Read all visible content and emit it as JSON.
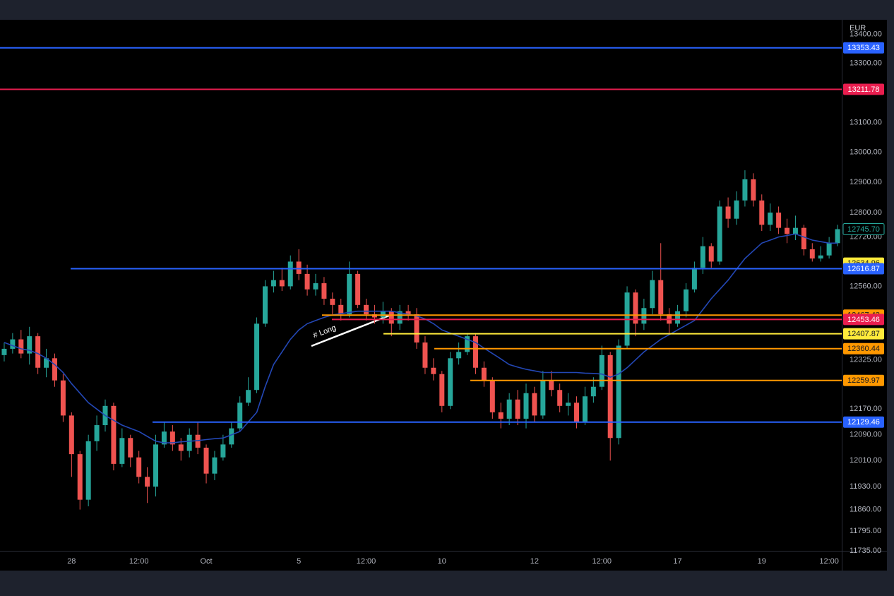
{
  "chart_data": {
    "type": "candlestick",
    "currency": "EUR",
    "annotation": "# Long",
    "log_scale": true,
    "ylim": [
      11735,
      13450
    ],
    "yticks": [
      {
        "value": 13400,
        "label": "13400.00"
      },
      {
        "value": 13300,
        "label": "13300.00"
      },
      {
        "value": 13100,
        "label": "13100.00"
      },
      {
        "value": 13000,
        "label": "13000.00"
      },
      {
        "value": 12900,
        "label": "12900.00"
      },
      {
        "value": 12800,
        "label": "12800.00"
      },
      {
        "value": 12720,
        "label": "12720.00"
      },
      {
        "value": 12560,
        "label": "12560.00"
      },
      {
        "value": 12325,
        "label": "12325.00"
      },
      {
        "value": 12170,
        "label": "12170.00"
      },
      {
        "value": 12090,
        "label": "12090.00"
      },
      {
        "value": 12010,
        "label": "12010.00"
      },
      {
        "value": 11930,
        "label": "11930.00"
      },
      {
        "value": 11860,
        "label": "11860.00"
      },
      {
        "value": 11795,
        "label": "11795.00"
      },
      {
        "value": 11735,
        "label": "11735.00"
      }
    ],
    "categories": [
      null,
      null,
      null,
      null,
      null,
      null,
      null,
      null,
      "28",
      null,
      null,
      null,
      null,
      null,
      null,
      null,
      "12:00",
      null,
      null,
      null,
      null,
      null,
      null,
      null,
      "Oct",
      null,
      null,
      null,
      null,
      null,
      null,
      null,
      null,
      null,
      null,
      "5",
      null,
      null,
      null,
      null,
      null,
      null,
      null,
      "12:00",
      null,
      null,
      null,
      null,
      null,
      null,
      null,
      null,
      "10",
      null,
      null,
      null,
      null,
      null,
      null,
      null,
      null,
      null,
      null,
      "12",
      null,
      null,
      null,
      null,
      null,
      null,
      null,
      "12:00",
      null,
      null,
      null,
      null,
      null,
      null,
      null,
      null,
      "17",
      null,
      null,
      null,
      null,
      null,
      null,
      null,
      null,
      null,
      "19",
      null,
      null,
      null,
      null,
      null,
      null,
      null,
      "12:00",
      null
    ],
    "up_color": "#26a69a",
    "down_color": "#ef5350",
    "open": [
      12340,
      12360,
      12390,
      12345,
      12400,
      12300,
      12330,
      12260,
      12150,
      12030,
      11890,
      12070,
      12120,
      12180,
      12000,
      12080,
      12020,
      11960,
      11930,
      12060,
      12100,
      12060,
      12040,
      12090,
      12050,
      11970,
      12020,
      12060,
      12110,
      12190,
      12230,
      12440,
      12560,
      12580,
      12560,
      12640,
      12600,
      12550,
      12570,
      12520,
      12500,
      12470,
      12600,
      12500,
      12470,
      12460,
      12480,
      12440,
      12480,
      12470,
      12380,
      12300,
      12280,
      12180,
      12330,
      12350,
      12400,
      12300,
      12260,
      12160,
      12140,
      12200,
      12140,
      12220,
      12150,
      12260,
      12230,
      12180,
      12190,
      12130,
      12210,
      12240,
      12340,
      12080,
      12370,
      12540,
      12440,
      12490,
      12580,
      12470,
      12440,
      12480,
      12550,
      12620,
      12690,
      12640,
      12820,
      12780,
      12840,
      12910,
      12840,
      12760,
      12800,
      12750,
      12730,
      12750,
      12680,
      12650,
      12660,
      12700
    ],
    "high": [
      12380,
      12410,
      12420,
      12430,
      12410,
      12360,
      12345,
      12280,
      12160,
      12040,
      12090,
      12150,
      12200,
      12190,
      12110,
      12090,
      12040,
      11990,
      12090,
      12130,
      12120,
      12080,
      12110,
      12130,
      12060,
      12040,
      12090,
      12130,
      12210,
      12270,
      12460,
      12580,
      12610,
      12620,
      12660,
      12680,
      12630,
      12600,
      12590,
      12540,
      12520,
      12640,
      12610,
      12520,
      12500,
      12510,
      12490,
      12500,
      12500,
      12490,
      12400,
      12330,
      12290,
      12350,
      12380,
      12410,
      12410,
      12320,
      12270,
      12190,
      12220,
      12230,
      12250,
      12240,
      12290,
      12290,
      12250,
      12220,
      12210,
      12240,
      12270,
      12370,
      12350,
      12390,
      12560,
      12550,
      12520,
      12610,
      12700,
      12490,
      12500,
      12570,
      12640,
      12720,
      12700,
      12840,
      12850,
      12870,
      12940,
      12930,
      12860,
      12830,
      12820,
      12780,
      12790,
      12760,
      12700,
      12690,
      12720,
      12760
    ],
    "low": [
      12320,
      12345,
      12330,
      12310,
      12280,
      12270,
      12240,
      12130,
      11960,
      11860,
      11870,
      12040,
      12100,
      11980,
      11990,
      11990,
      11940,
      11880,
      11900,
      12050,
      12040,
      12010,
      12020,
      12030,
      11940,
      11950,
      12010,
      12050,
      12100,
      12180,
      12220,
      12430,
      12540,
      12545,
      12550,
      12580,
      12530,
      12530,
      12500,
      12470,
      12450,
      12460,
      12490,
      12450,
      12440,
      12440,
      12400,
      12420,
      12450,
      12360,
      12280,
      12260,
      12160,
      12170,
      12310,
      12340,
      12280,
      12240,
      12140,
      12110,
      12120,
      12120,
      12110,
      12130,
      12140,
      12210,
      12160,
      12150,
      12110,
      12120,
      12190,
      12230,
      12010,
      12060,
      12360,
      12400,
      12420,
      12470,
      12450,
      12410,
      12430,
      12460,
      12540,
      12600,
      12620,
      12630,
      12750,
      12760,
      12820,
      12820,
      12740,
      12740,
      12730,
      12700,
      12710,
      12660,
      12640,
      12640,
      12650,
      12690
    ],
    "close": [
      12360,
      12390,
      12345,
      12400,
      12300,
      12330,
      12260,
      12150,
      12030,
      11890,
      12070,
      12120,
      12180,
      12000,
      12080,
      12020,
      11960,
      11930,
      12060,
      12100,
      12060,
      12040,
      12090,
      12050,
      11970,
      12020,
      12060,
      12110,
      12190,
      12230,
      12440,
      12560,
      12580,
      12560,
      12640,
      12600,
      12550,
      12570,
      12520,
      12500,
      12470,
      12600,
      12500,
      12470,
      12460,
      12480,
      12440,
      12480,
      12470,
      12380,
      12300,
      12280,
      12180,
      12330,
      12350,
      12400,
      12300,
      12260,
      12160,
      12140,
      12200,
      12140,
      12220,
      12150,
      12260,
      12230,
      12180,
      12190,
      12130,
      12210,
      12240,
      12340,
      12080,
      12370,
      12540,
      12440,
      12490,
      12580,
      12470,
      12440,
      12480,
      12550,
      12620,
      12690,
      12640,
      12820,
      12780,
      12840,
      12910,
      12840,
      12760,
      12800,
      12750,
      12730,
      12750,
      12680,
      12650,
      12660,
      12700,
      12745.7
    ],
    "moving_average": {
      "color": "#2347b5",
      "values": [
        12380,
        12370,
        12360,
        12355,
        12345,
        12330,
        12310,
        12285,
        12250,
        12220,
        12190,
        12170,
        12150,
        12135,
        12120,
        12110,
        12100,
        12085,
        12070,
        12065,
        12065,
        12068,
        12070,
        12072,
        12075,
        12078,
        12080,
        12090,
        12100,
        12130,
        12160,
        12240,
        12310,
        12350,
        12390,
        12420,
        12440,
        12450,
        12460,
        12468,
        12472,
        12476,
        12480,
        12480,
        12480,
        12480,
        12480,
        12475,
        12470,
        12465,
        12455,
        12440,
        12420,
        12410,
        12400,
        12390,
        12380,
        12362,
        12345,
        12328,
        12310,
        12302,
        12295,
        12290,
        12285,
        12285,
        12285,
        12285,
        12285,
        12283,
        12282,
        12280,
        12270,
        12280,
        12300,
        12325,
        12350,
        12370,
        12390,
        12405,
        12420,
        12435,
        12450,
        12485,
        12520,
        12550,
        12580,
        12615,
        12650,
        12675,
        12700,
        12710,
        12720,
        12725,
        12730,
        12720,
        12710,
        12705,
        12700,
        12700
      ]
    },
    "last_price": {
      "value": 12745.7,
      "label": "12745.70",
      "color": "#26a69a"
    },
    "levels": [
      {
        "value": 13353.43,
        "color": "#2962ff"
      },
      {
        "value": 13211.78,
        "color": "#e91e4f"
      },
      {
        "value": 12634.96,
        "color": "#ffeb3b",
        "show_line": false
      },
      {
        "value": 12616.87,
        "color": "#2962ff"
      },
      {
        "value": 12467.43,
        "color": "#ff9800"
      },
      {
        "value": 12453.46,
        "color": "#e91e4f"
      },
      {
        "value": 12407.87,
        "color": "#ffeb3b"
      },
      {
        "value": 12360.44,
        "color": "#ff9800"
      },
      {
        "value": 12259.97,
        "color": "#ff9800"
      },
      {
        "value": 12129.46,
        "color": "#2962ff"
      }
    ]
  }
}
